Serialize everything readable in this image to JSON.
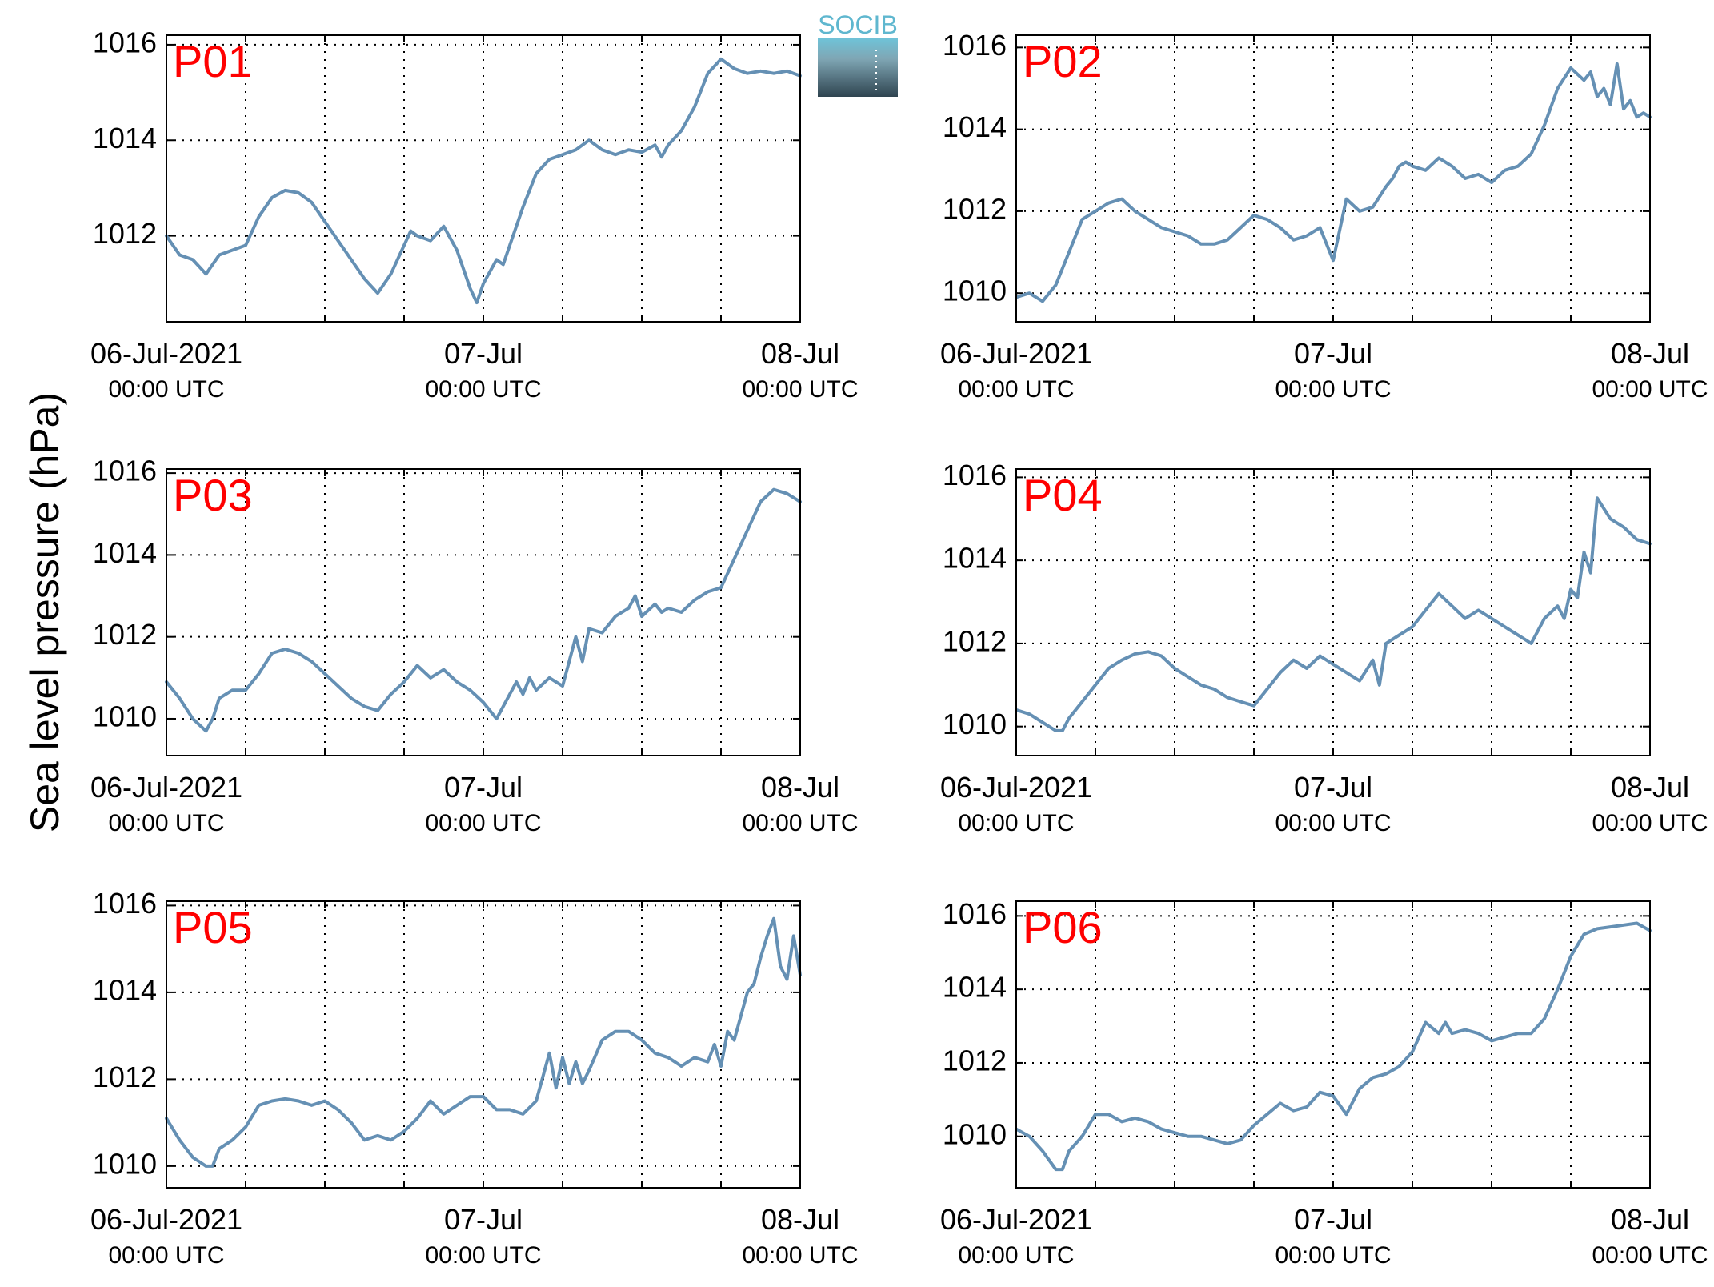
{
  "figure": {
    "ylabel": "Sea level pressure (hPa)",
    "logo_text": "SOCIB",
    "line_color": "#6590b4",
    "panel_label_color": "#ff0000"
  },
  "chart_data": [
    {
      "type": "line",
      "name": "P01",
      "title": "P01",
      "ylim": [
        1010.2,
        1016.2
      ],
      "yticks": [
        1012,
        1014,
        1016
      ],
      "xlim": [
        0,
        48
      ],
      "x_unit": "hours since 06-Jul-2021 00:00 UTC",
      "x_major_ticks": [
        {
          "x": 0,
          "date": "06-Jul-2021",
          "time": "00:00 UTC"
        },
        {
          "x": 24,
          "date": "07-Jul",
          "time": "00:00 UTC"
        },
        {
          "x": 48,
          "date": "08-Jul",
          "time": "00:00 UTC"
        }
      ],
      "x_grid": [
        6,
        12,
        18,
        24,
        30,
        36,
        42
      ],
      "grid": true,
      "series": [
        {
          "x": [
            0,
            1,
            2,
            3,
            4,
            5,
            6,
            7,
            8,
            9,
            10,
            11,
            12,
            13,
            14,
            15,
            16,
            17,
            18,
            18.5,
            19,
            20,
            21,
            22,
            23,
            23.5,
            24,
            25,
            25.5,
            26,
            27,
            28,
            29,
            30,
            31,
            32,
            33,
            34,
            35,
            36,
            37,
            37.5,
            38,
            39,
            40,
            41,
            42,
            43,
            44,
            45,
            46,
            47,
            48
          ],
          "y": [
            1012.0,
            1011.6,
            1011.5,
            1011.2,
            1011.6,
            1011.7,
            1011.8,
            1012.4,
            1012.8,
            1012.95,
            1012.9,
            1012.7,
            1012.3,
            1011.9,
            1011.5,
            1011.1,
            1010.8,
            1011.2,
            1011.8,
            1012.1,
            1012.0,
            1011.9,
            1012.2,
            1011.7,
            1010.9,
            1010.6,
            1011.0,
            1011.5,
            1011.4,
            1011.8,
            1012.6,
            1013.3,
            1013.6,
            1013.7,
            1013.8,
            1014.0,
            1013.8,
            1013.7,
            1013.8,
            1013.75,
            1013.9,
            1013.65,
            1013.9,
            1014.2,
            1014.7,
            1015.4,
            1015.7,
            1015.5,
            1015.4,
            1015.45,
            1015.4,
            1015.45,
            1015.35
          ]
        }
      ]
    },
    {
      "type": "line",
      "name": "P02",
      "title": "P02",
      "ylim": [
        1009.3,
        1016.3
      ],
      "yticks": [
        1010,
        1012,
        1014,
        1016
      ],
      "xlim": [
        0,
        48
      ],
      "x_unit": "hours since 06-Jul-2021 00:00 UTC",
      "x_major_ticks": [
        {
          "x": 0,
          "date": "06-Jul-2021",
          "time": "00:00 UTC"
        },
        {
          "x": 24,
          "date": "07-Jul",
          "time": "00:00 UTC"
        },
        {
          "x": 48,
          "date": "08-Jul",
          "time": "00:00 UTC"
        }
      ],
      "x_grid": [
        6,
        12,
        18,
        24,
        30,
        36,
        42
      ],
      "grid": true,
      "series": [
        {
          "x": [
            0,
            1,
            2,
            3,
            4,
            5,
            6,
            7,
            8,
            9,
            10,
            11,
            12,
            13,
            14,
            15,
            16,
            17,
            18,
            19,
            20,
            21,
            22,
            23,
            24,
            25,
            26,
            27,
            28,
            28.5,
            29,
            29.5,
            30,
            31,
            32,
            33,
            34,
            35,
            36,
            37,
            38,
            39,
            40,
            41,
            42,
            43,
            43.5,
            44,
            44.5,
            45,
            45.5,
            46,
            46.5,
            47,
            47.5,
            48
          ],
          "y": [
            1009.9,
            1010.0,
            1009.8,
            1010.2,
            1011.0,
            1011.8,
            1012.0,
            1012.2,
            1012.3,
            1012.0,
            1011.8,
            1011.6,
            1011.5,
            1011.4,
            1011.2,
            1011.2,
            1011.3,
            1011.6,
            1011.9,
            1011.8,
            1011.6,
            1011.3,
            1011.4,
            1011.6,
            1010.8,
            1012.3,
            1012.0,
            1012.1,
            1012.6,
            1012.8,
            1013.1,
            1013.2,
            1013.1,
            1013.0,
            1013.3,
            1013.1,
            1012.8,
            1012.9,
            1012.7,
            1013.0,
            1013.1,
            1013.4,
            1014.1,
            1015.0,
            1015.5,
            1015.2,
            1015.4,
            1014.8,
            1015.0,
            1014.6,
            1015.6,
            1014.5,
            1014.7,
            1014.3,
            1014.4,
            1014.3
          ]
        }
      ]
    },
    {
      "type": "line",
      "name": "P03",
      "title": "P03",
      "ylim": [
        1009.1,
        1016.1
      ],
      "yticks": [
        1010,
        1012,
        1014,
        1016
      ],
      "xlim": [
        0,
        48
      ],
      "x_unit": "hours since 06-Jul-2021 00:00 UTC",
      "x_major_ticks": [
        {
          "x": 0,
          "date": "06-Jul-2021",
          "time": "00:00 UTC"
        },
        {
          "x": 24,
          "date": "07-Jul",
          "time": "00:00 UTC"
        },
        {
          "x": 48,
          "date": "08-Jul",
          "time": "00:00 UTC"
        }
      ],
      "x_grid": [
        6,
        12,
        18,
        24,
        30,
        36,
        42
      ],
      "grid": true,
      "series": [
        {
          "x": [
            0,
            1,
            2,
            3,
            3.5,
            4,
            5,
            6,
            7,
            8,
            9,
            10,
            11,
            12,
            13,
            14,
            15,
            16,
            17,
            18,
            19,
            20,
            21,
            22,
            23,
            24,
            25,
            26,
            26.5,
            27,
            27.5,
            28,
            29,
            30,
            31,
            31.5,
            32,
            33,
            34,
            35,
            35.5,
            36,
            37,
            37.5,
            38,
            39,
            40,
            41,
            42,
            43,
            44,
            45,
            46,
            47,
            48
          ],
          "y": [
            1010.9,
            1010.5,
            1010.0,
            1009.7,
            1010.0,
            1010.5,
            1010.7,
            1010.7,
            1011.1,
            1011.6,
            1011.7,
            1011.6,
            1011.4,
            1011.1,
            1010.8,
            1010.5,
            1010.3,
            1010.2,
            1010.6,
            1010.9,
            1011.3,
            1011.0,
            1011.2,
            1010.9,
            1010.7,
            1010.4,
            1010.0,
            1010.6,
            1010.9,
            1010.6,
            1011.0,
            1010.7,
            1011.0,
            1010.8,
            1012.0,
            1011.4,
            1012.2,
            1012.1,
            1012.5,
            1012.7,
            1013.0,
            1012.5,
            1012.8,
            1012.6,
            1012.7,
            1012.6,
            1012.9,
            1013.1,
            1013.2,
            1013.9,
            1014.6,
            1015.3,
            1015.6,
            1015.5,
            1015.3
          ]
        }
      ]
    },
    {
      "type": "line",
      "name": "P04",
      "title": "P04",
      "ylim": [
        1009.3,
        1016.2
      ],
      "yticks": [
        1010,
        1012,
        1014,
        1016
      ],
      "xlim": [
        0,
        48
      ],
      "x_unit": "hours since 06-Jul-2021 00:00 UTC",
      "x_major_ticks": [
        {
          "x": 0,
          "date": "06-Jul-2021",
          "time": "00:00 UTC"
        },
        {
          "x": 24,
          "date": "07-Jul",
          "time": "00:00 UTC"
        },
        {
          "x": 48,
          "date": "08-Jul",
          "time": "00:00 UTC"
        }
      ],
      "x_grid": [
        6,
        12,
        18,
        24,
        30,
        36,
        42
      ],
      "grid": true,
      "series": [
        {
          "x": [
            0,
            1,
            2,
            3,
            3.5,
            4,
            5,
            6,
            7,
            8,
            9,
            10,
            11,
            12,
            13,
            14,
            15,
            16,
            17,
            18,
            19,
            20,
            21,
            22,
            23,
            24,
            25,
            26,
            27,
            27.5,
            28,
            29,
            30,
            31,
            32,
            33,
            34,
            35,
            36,
            37,
            38,
            39,
            40,
            41,
            41.5,
            42,
            42.5,
            43,
            43.5,
            44,
            45,
            46,
            47,
            48
          ],
          "y": [
            1010.4,
            1010.3,
            1010.1,
            1009.9,
            1009.9,
            1010.2,
            1010.6,
            1011.0,
            1011.4,
            1011.6,
            1011.75,
            1011.8,
            1011.7,
            1011.4,
            1011.2,
            1011.0,
            1010.9,
            1010.7,
            1010.6,
            1010.5,
            1010.9,
            1011.3,
            1011.6,
            1011.4,
            1011.7,
            1011.5,
            1011.3,
            1011.1,
            1011.6,
            1011.0,
            1012.0,
            1012.2,
            1012.4,
            1012.8,
            1013.2,
            1012.9,
            1012.6,
            1012.8,
            1012.6,
            1012.4,
            1012.2,
            1012.0,
            1012.6,
            1012.9,
            1012.6,
            1013.3,
            1013.1,
            1014.2,
            1013.7,
            1015.5,
            1015.0,
            1014.8,
            1014.5,
            1014.4
          ]
        }
      ]
    },
    {
      "type": "line",
      "name": "P05",
      "title": "P05",
      "ylim": [
        1009.5,
        1016.1
      ],
      "yticks": [
        1010,
        1012,
        1014,
        1016
      ],
      "xlim": [
        0,
        48
      ],
      "x_unit": "hours since 06-Jul-2021 00:00 UTC",
      "x_major_ticks": [
        {
          "x": 0,
          "date": "06-Jul-2021",
          "time": "00:00 UTC"
        },
        {
          "x": 24,
          "date": "07-Jul",
          "time": "00:00 UTC"
        },
        {
          "x": 48,
          "date": "08-Jul",
          "time": "00:00 UTC"
        }
      ],
      "x_grid": [
        6,
        12,
        18,
        24,
        30,
        36,
        42
      ],
      "grid": true,
      "series": [
        {
          "x": [
            0,
            1,
            2,
            3,
            3.5,
            4,
            5,
            6,
            7,
            8,
            9,
            10,
            11,
            12,
            13,
            14,
            15,
            16,
            17,
            18,
            19,
            20,
            21,
            22,
            23,
            24,
            25,
            26,
            27,
            28,
            29,
            29.5,
            30,
            30.5,
            31,
            31.5,
            32,
            33,
            34,
            35,
            36,
            37,
            38,
            39,
            40,
            41,
            41.5,
            42,
            42.5,
            43,
            44,
            44.5,
            45,
            45.5,
            46,
            46.5,
            47,
            47.5,
            48
          ],
          "y": [
            1011.1,
            1010.6,
            1010.2,
            1010.0,
            1010.0,
            1010.4,
            1010.6,
            1010.9,
            1011.4,
            1011.5,
            1011.55,
            1011.5,
            1011.4,
            1011.5,
            1011.3,
            1011.0,
            1010.6,
            1010.7,
            1010.6,
            1010.8,
            1011.1,
            1011.5,
            1011.2,
            1011.4,
            1011.6,
            1011.6,
            1011.3,
            1011.3,
            1011.2,
            1011.5,
            1012.6,
            1011.8,
            1012.5,
            1011.9,
            1012.4,
            1011.9,
            1012.2,
            1012.9,
            1013.1,
            1013.1,
            1012.9,
            1012.6,
            1012.5,
            1012.3,
            1012.5,
            1012.4,
            1012.8,
            1012.3,
            1013.1,
            1012.9,
            1014.0,
            1014.2,
            1014.8,
            1015.3,
            1015.7,
            1014.6,
            1014.3,
            1015.3,
            1014.4
          ]
        }
      ]
    },
    {
      "type": "line",
      "name": "P06",
      "title": "P06",
      "ylim": [
        1008.6,
        1016.4
      ],
      "yticks": [
        1010,
        1012,
        1014,
        1016
      ],
      "xlim": [
        0,
        48
      ],
      "x_unit": "hours since 06-Jul-2021 00:00 UTC",
      "x_major_ticks": [
        {
          "x": 0,
          "date": "06-Jul-2021",
          "time": "00:00 UTC"
        },
        {
          "x": 24,
          "date": "07-Jul",
          "time": "00:00 UTC"
        },
        {
          "x": 48,
          "date": "08-Jul",
          "time": "00:00 UTC"
        }
      ],
      "x_grid": [
        6,
        12,
        18,
        24,
        30,
        36,
        42
      ],
      "grid": true,
      "series": [
        {
          "x": [
            0,
            1,
            2,
            3,
            3.5,
            4,
            5,
            6,
            7,
            8,
            9,
            10,
            11,
            12,
            13,
            14,
            15,
            16,
            17,
            18,
            19,
            20,
            21,
            22,
            23,
            24,
            25,
            26,
            27,
            28,
            29,
            30,
            31,
            32,
            32.5,
            33,
            34,
            35,
            36,
            37,
            38,
            39,
            40,
            41,
            42,
            43,
            44,
            45,
            46,
            47,
            48
          ],
          "y": [
            1010.2,
            1010.0,
            1009.6,
            1009.1,
            1009.1,
            1009.6,
            1010.0,
            1010.6,
            1010.6,
            1010.4,
            1010.5,
            1010.4,
            1010.2,
            1010.1,
            1010.0,
            1010.0,
            1009.9,
            1009.8,
            1009.9,
            1010.3,
            1010.6,
            1010.9,
            1010.7,
            1010.8,
            1011.2,
            1011.1,
            1010.6,
            1011.3,
            1011.6,
            1011.7,
            1011.9,
            1012.3,
            1013.1,
            1012.8,
            1013.1,
            1012.8,
            1012.9,
            1012.8,
            1012.6,
            1012.7,
            1012.8,
            1012.8,
            1013.2,
            1014.0,
            1014.9,
            1015.5,
            1015.65,
            1015.7,
            1015.75,
            1015.8,
            1015.6
          ]
        }
      ]
    }
  ]
}
